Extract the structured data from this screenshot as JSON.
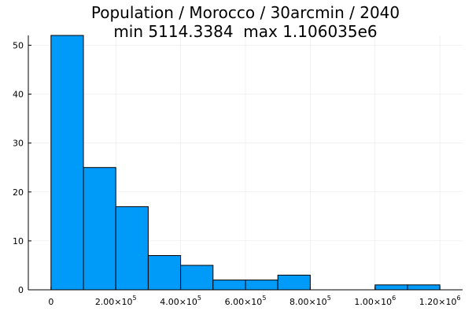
{
  "chart_data": {
    "type": "bar",
    "title": "Population / Morocco / 30arcmin / 2040",
    "subtitle": "min 5114.3384  max 1.106035e6",
    "xlabel": "",
    "ylabel": "",
    "bin_edges": [
      0,
      100000,
      200000,
      300000,
      400000,
      500000,
      600000,
      700000,
      800000,
      900000,
      1000000,
      1100000,
      1200000
    ],
    "counts": [
      52,
      25,
      17,
      7,
      5,
      2,
      2,
      3,
      0,
      0,
      1,
      1
    ],
    "xlim": [
      -70000,
      1270000
    ],
    "ylim": [
      0,
      52
    ],
    "x_ticks": [
      {
        "value": 0,
        "label": "0",
        "exp": ""
      },
      {
        "value": 200000,
        "label": "2.00×10",
        "exp": "5"
      },
      {
        "value": 400000,
        "label": "4.00×10",
        "exp": "5"
      },
      {
        "value": 600000,
        "label": "6.00×10",
        "exp": "5"
      },
      {
        "value": 800000,
        "label": "8.00×10",
        "exp": "5"
      },
      {
        "value": 1000000,
        "label": "1.00×10",
        "exp": "6"
      },
      {
        "value": 1200000,
        "label": "1.20×10",
        "exp": "6"
      }
    ],
    "y_ticks": [
      {
        "value": 0,
        "label": "0"
      },
      {
        "value": 10,
        "label": "10"
      },
      {
        "value": 20,
        "label": "20"
      },
      {
        "value": 30,
        "label": "30"
      },
      {
        "value": 40,
        "label": "40"
      },
      {
        "value": 50,
        "label": "50"
      }
    ],
    "bar_color": "#009af9",
    "grid": true,
    "legend": "none"
  }
}
